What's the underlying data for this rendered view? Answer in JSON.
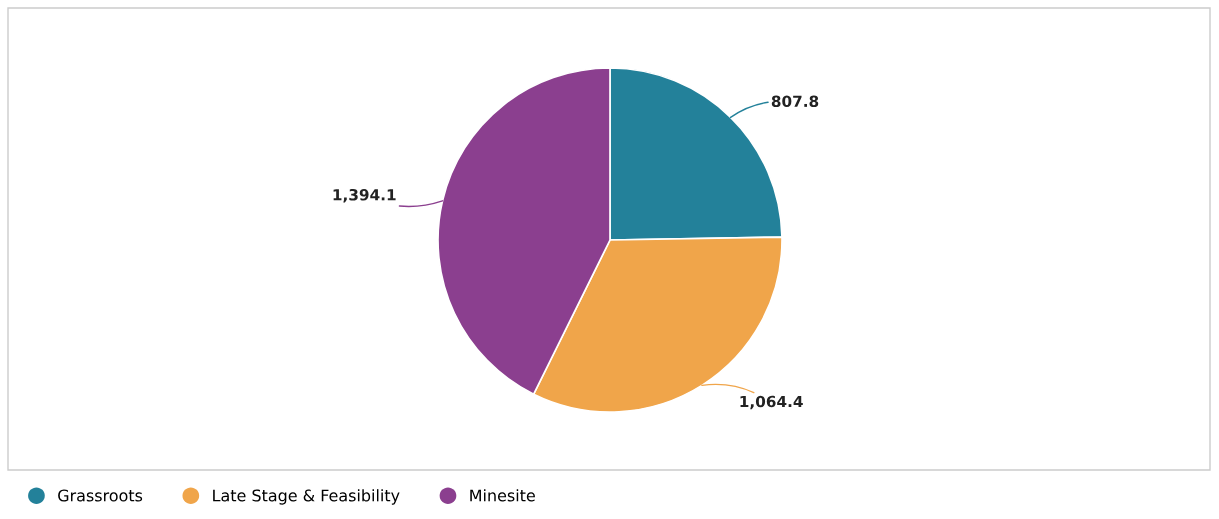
{
  "chart_data": {
    "type": "pie",
    "categories": [
      "Grassroots",
      "Late Stage & Feasibility",
      "Minesite"
    ],
    "values": [
      807.8,
      1064.4,
      1394.1
    ],
    "colors": [
      "#23819a",
      "#f0a54a",
      "#8b3f8f"
    ],
    "value_labels": [
      "807.8",
      "1,064.4",
      "1,394.1"
    ],
    "legend": "bottom left"
  }
}
